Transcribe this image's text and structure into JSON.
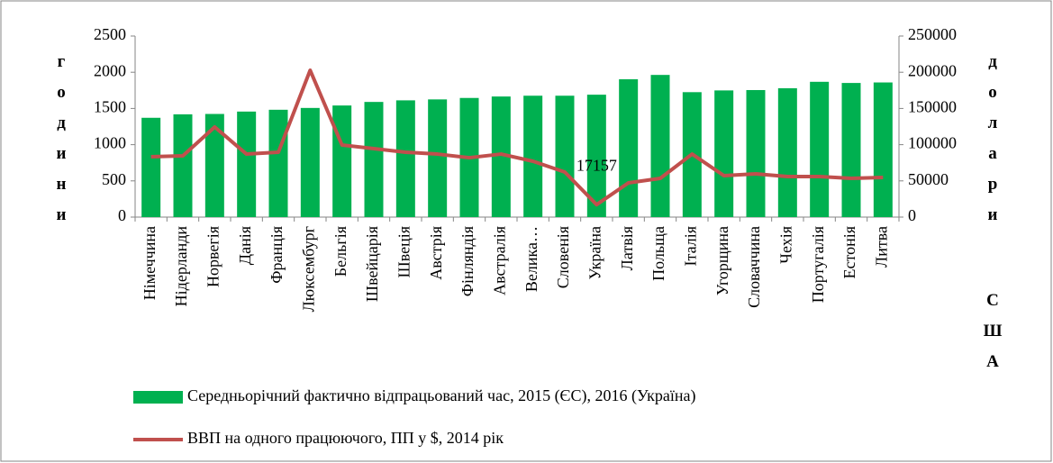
{
  "chart_data": {
    "type": "bar_line",
    "categories": [
      "Німеччина",
      "Нідерланди",
      "Норвегія",
      "Данія",
      "Франція",
      "Люксембург",
      "Бельгія",
      "Швейцарія",
      "Швеція",
      "Австрія",
      "Фінляндія",
      "Австралія",
      "Велика…",
      "Словенія",
      "Україна",
      "Латвія",
      "Польща",
      "Італія",
      "Угорщина",
      "Словаччина",
      "Чехія",
      "Португалія",
      "Естонія",
      "Литва"
    ],
    "series": [
      {
        "name": "Середньорічний фактично відпрацьований час, 2015 (ЄС), 2016 (Україна)",
        "type": "bar",
        "color": "#00b050",
        "values": [
          1371,
          1419,
          1424,
          1457,
          1482,
          1507,
          1541,
          1590,
          1612,
          1625,
          1645,
          1665,
          1676,
          1676,
          1690,
          1903,
          1963,
          1725,
          1749,
          1754,
          1779,
          1868,
          1852,
          1859
        ]
      },
      {
        "name": "ВВП на одного працюючого, ПП у $, 2014 рік",
        "type": "line",
        "axis": "y2",
        "color": "#c0504d",
        "values": [
          83300,
          84600,
          124400,
          87000,
          89500,
          202700,
          99500,
          94500,
          89500,
          87000,
          82000,
          87000,
          77100,
          62200,
          17157,
          47300,
          53500,
          87000,
          57200,
          59700,
          56000,
          56000,
          53500,
          54700
        ],
        "value_labels": [
          null,
          null,
          null,
          null,
          null,
          null,
          null,
          null,
          null,
          null,
          null,
          null,
          null,
          null,
          "17157",
          null,
          null,
          null,
          null,
          null,
          null,
          null,
          null,
          null
        ]
      }
    ],
    "ylabel": "години",
    "y2label": "долари США",
    "ylim": [
      0,
      2500
    ],
    "yticks": [
      0,
      500,
      1000,
      1500,
      2000,
      2500
    ],
    "y2lim": [
      0,
      250000
    ],
    "y2ticks": [
      0,
      50000,
      100000,
      150000,
      200000,
      250000
    ],
    "grid": false,
    "legend": "bottom"
  }
}
